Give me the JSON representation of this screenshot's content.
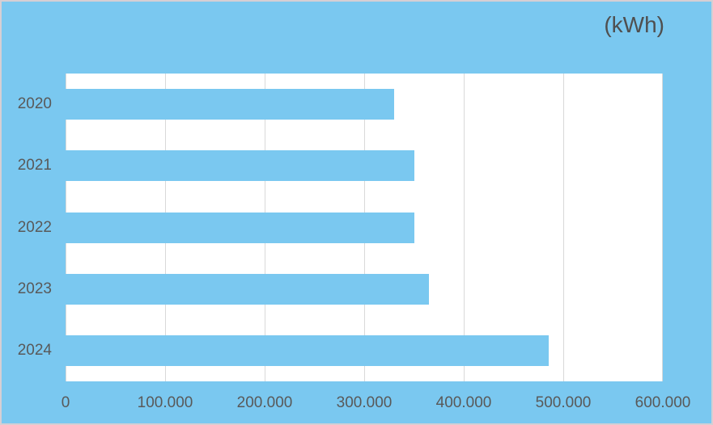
{
  "window": {
    "background_color": "#7AC8F0",
    "border_color": "#D6CFD3"
  },
  "chart_data": {
    "type": "bar",
    "orientation": "horizontal",
    "title": "(kWh)",
    "xlabel": "",
    "ylabel": "",
    "categories": [
      "2020",
      "2021",
      "2022",
      "2023",
      "2024"
    ],
    "values": [
      330000,
      350000,
      350000,
      365000,
      485000
    ],
    "xlim": [
      0,
      600000
    ],
    "x_ticks": [
      {
        "value": 0,
        "label": "0"
      },
      {
        "value": 100000,
        "label": "100.000"
      },
      {
        "value": 200000,
        "label": "200.000"
      },
      {
        "value": 300000,
        "label": "300.000"
      },
      {
        "value": 400000,
        "label": "400.000"
      },
      {
        "value": 500000,
        "label": "500.000"
      },
      {
        "value": 600000,
        "label": "600.000"
      }
    ],
    "grid": "vertical-major",
    "legend": "none",
    "bar_color": "#7AC8F0",
    "plot_background_color": "#FFFFFF",
    "gridline_color": "#D9D9D9",
    "label_color": "#595959"
  }
}
